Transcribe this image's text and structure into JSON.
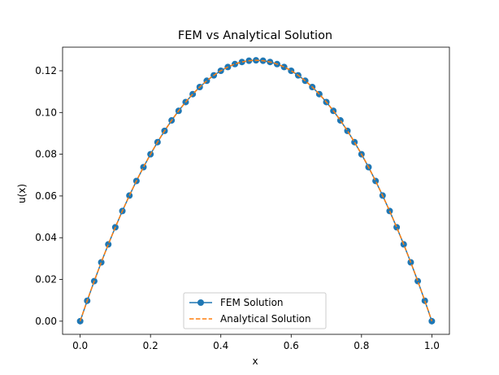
{
  "chart_data": {
    "type": "line",
    "title": "FEM vs Analytical Solution",
    "xlabel": "x",
    "ylabel": "u(x)",
    "xlim": [
      -0.05,
      1.05
    ],
    "ylim": [
      -0.0063,
      0.1313
    ],
    "xticks": [
      0.0,
      0.2,
      0.4,
      0.6,
      0.8,
      1.0
    ],
    "xtick_labels": [
      "0.0",
      "0.2",
      "0.4",
      "0.6",
      "0.8",
      "1.0"
    ],
    "yticks": [
      0.0,
      0.02,
      0.04,
      0.06,
      0.08,
      0.1,
      0.12
    ],
    "ytick_labels": [
      "0.00",
      "0.02",
      "0.04",
      "0.06",
      "0.08",
      "0.10",
      "0.12"
    ],
    "grid": false,
    "legend_position": "lower center",
    "series": [
      {
        "name": "FEM Solution",
        "style": "solid line with circle markers",
        "color": "#1f77b4",
        "x": [
          0.0,
          0.02,
          0.04,
          0.06,
          0.08,
          0.1,
          0.12,
          0.14,
          0.16,
          0.18,
          0.2,
          0.22,
          0.24,
          0.26,
          0.28,
          0.3,
          0.32,
          0.34,
          0.36,
          0.38,
          0.4,
          0.42,
          0.44,
          0.46,
          0.48,
          0.5,
          0.52,
          0.54,
          0.56,
          0.58,
          0.6,
          0.62,
          0.64,
          0.66,
          0.68,
          0.7,
          0.72,
          0.74,
          0.76,
          0.78,
          0.8,
          0.82,
          0.84,
          0.86,
          0.88,
          0.9,
          0.92,
          0.94,
          0.96,
          0.98,
          1.0
        ],
        "y": [
          0.0,
          0.0098,
          0.0192,
          0.0282,
          0.0368,
          0.045,
          0.0528,
          0.0602,
          0.0672,
          0.0738,
          0.08,
          0.0858,
          0.0912,
          0.0962,
          0.1008,
          0.105,
          0.1088,
          0.1122,
          0.1152,
          0.1178,
          0.12,
          0.1218,
          0.1232,
          0.1242,
          0.1248,
          0.125,
          0.1248,
          0.1242,
          0.1232,
          0.1218,
          0.12,
          0.1178,
          0.1152,
          0.1122,
          0.1088,
          0.105,
          0.1008,
          0.0962,
          0.0912,
          0.0858,
          0.08,
          0.0738,
          0.0672,
          0.0602,
          0.0528,
          0.045,
          0.0368,
          0.0282,
          0.0192,
          0.0098,
          0.0
        ]
      },
      {
        "name": "Analytical Solution",
        "style": "dashed line",
        "color": "#ff7f0e",
        "function": "u(x) = x(1 - x)/2"
      }
    ]
  }
}
